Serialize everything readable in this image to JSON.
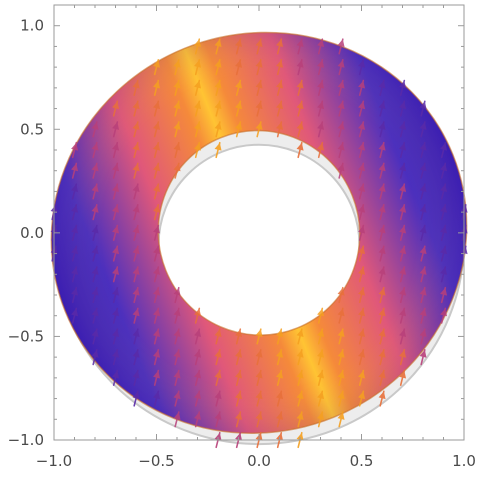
{
  "chart_data": {
    "type": "vector-field",
    "title": "",
    "xlabel": "",
    "ylabel": "",
    "xlim": [
      -1.0,
      1.0
    ],
    "ylim": [
      -1.0,
      1.1
    ],
    "x_ticks": [
      -1.0,
      -0.5,
      0.0,
      0.5,
      1.0
    ],
    "y_ticks": [
      -1.0,
      -0.5,
      0.0,
      0.5,
      1.0
    ],
    "x_tick_labels": [
      "-1.0",
      "-0.5",
      "0.0",
      "0.5",
      "1.0"
    ],
    "y_tick_labels": [
      "-1.0",
      "-0.5",
      "0.0",
      "0.5",
      "1.0"
    ],
    "region": {
      "shape": "annulus",
      "center": [
        0.0,
        0.0
      ],
      "outer_radius": 1.0,
      "inner_radius": 0.5,
      "x_stretch": 1.03,
      "y_stretch": 0.97,
      "tilt_degrees": 22
    },
    "shadow_region": {
      "center": [
        0.0,
        -0.04
      ],
      "outer_radius": 1.0,
      "inner_radius": 0.5
    },
    "field": {
      "description_of_direction": "arrows point mostly upward, tilted toward +x",
      "dx": 0.25,
      "dy": 1.0,
      "grid_spacing": 0.1
    },
    "color_scale": {
      "low": "#4a2fbf",
      "mid": "#e0587a",
      "high": "#ffc433"
    },
    "frame_color": "#9a9a9a"
  }
}
